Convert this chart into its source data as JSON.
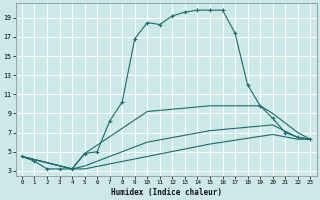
{
  "background_color": "#cce8e8",
  "grid_color": "#ffffff",
  "line_color": "#1a6b6b",
  "xlabel": "Humidex (Indice chaleur)",
  "xlim": [
    -0.5,
    23.5
  ],
  "ylim": [
    2.5,
    20.5
  ],
  "xticks": [
    0,
    1,
    2,
    3,
    4,
    5,
    6,
    7,
    8,
    9,
    10,
    11,
    12,
    13,
    14,
    15,
    16,
    17,
    18,
    19,
    20,
    21,
    22,
    23
  ],
  "yticks": [
    3,
    5,
    7,
    9,
    11,
    13,
    15,
    17,
    19
  ],
  "series": [
    {
      "x": [
        0,
        1,
        2,
        3,
        4,
        5,
        6,
        7,
        8,
        9,
        10,
        11,
        12,
        13,
        14,
        15,
        16,
        17,
        18,
        19,
        20,
        21,
        22,
        23
      ],
      "y": [
        4.5,
        4.0,
        3.2,
        3.2,
        3.2,
        4.8,
        5.0,
        8.2,
        10.2,
        16.8,
        18.5,
        18.3,
        19.2,
        19.6,
        19.8,
        19.8,
        19.8,
        17.4,
        12.0,
        9.8,
        8.5,
        7.0,
        6.5,
        6.3
      ],
      "with_markers": true
    },
    {
      "x": [
        0,
        4,
        5,
        10,
        15,
        19,
        20,
        22,
        23
      ],
      "y": [
        4.5,
        3.2,
        4.8,
        9.2,
        9.8,
        9.8,
        9.0,
        7.0,
        6.3
      ],
      "with_markers": false
    },
    {
      "x": [
        0,
        4,
        5,
        10,
        15,
        20,
        22,
        23
      ],
      "y": [
        4.5,
        3.2,
        3.5,
        6.0,
        7.2,
        7.8,
        6.5,
        6.3
      ],
      "with_markers": false
    },
    {
      "x": [
        0,
        4,
        5,
        10,
        15,
        20,
        22,
        23
      ],
      "y": [
        4.5,
        3.2,
        3.2,
        4.5,
        5.8,
        6.8,
        6.3,
        6.3
      ],
      "with_markers": false
    }
  ]
}
